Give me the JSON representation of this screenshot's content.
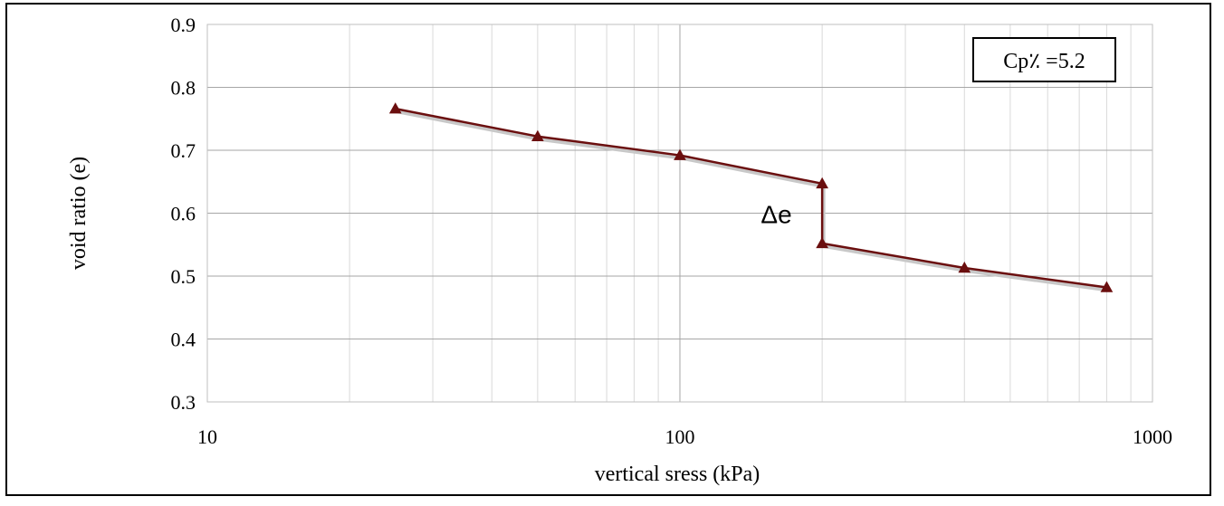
{
  "chart_data": {
    "type": "line",
    "xlabel": "vertical sress  (kPa)",
    "ylabel": "void ratio (e)",
    "xscale": "log",
    "xlim": [
      10,
      1000
    ],
    "ylim": [
      0.3,
      0.9
    ],
    "x_ticks": [
      "10",
      "100",
      "1000"
    ],
    "y_ticks": [
      "0.3",
      "0.4",
      "0.5",
      "0.6",
      "0.7",
      "0.8",
      "0.9"
    ],
    "grid": true,
    "series": [
      {
        "color": "#6b0f0f",
        "marker": "triangle",
        "points": [
          {
            "x": 25,
            "y": 0.766
          },
          {
            "x": 50,
            "y": 0.722
          },
          {
            "x": 100,
            "y": 0.692
          },
          {
            "x": 200,
            "y": 0.647
          },
          {
            "x": 200,
            "y": 0.552
          },
          {
            "x": 400,
            "y": 0.513
          },
          {
            "x": 800,
            "y": 0.482
          }
        ]
      }
    ],
    "annotations": [
      {
        "text": "Δe",
        "x": 160,
        "y": 0.6
      }
    ],
    "legend_box": {
      "text": "Cp٪ =5.2",
      "placement": "top-right"
    }
  }
}
